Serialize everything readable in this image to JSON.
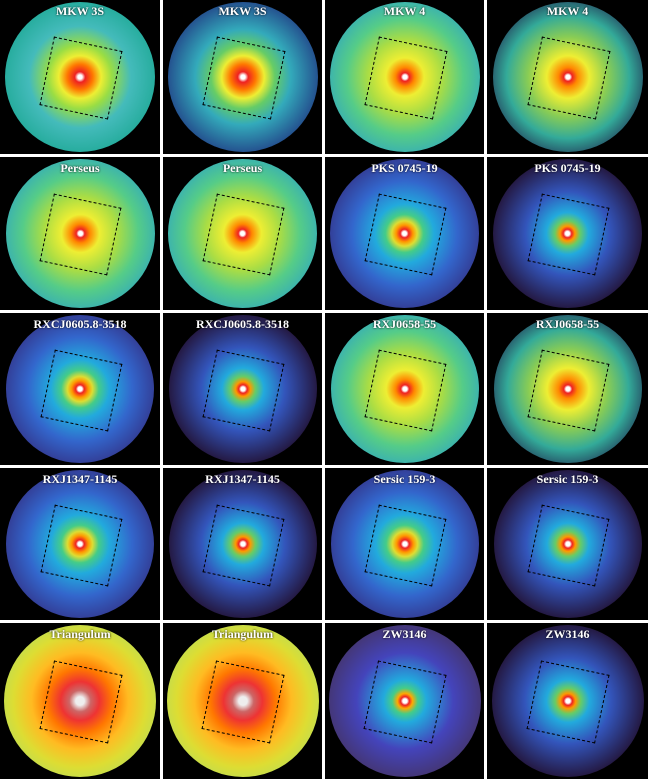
{
  "panels": [
    {
      "label": "MKW 3S"
    },
    {
      "label": "MKW 3S"
    },
    {
      "label": "MKW 4"
    },
    {
      "label": "MKW 4"
    },
    {
      "label": "Perseus"
    },
    {
      "label": "Perseus"
    },
    {
      "label": "PKS 0745-19"
    },
    {
      "label": "PKS 0745-19"
    },
    {
      "label": "RXCJ0605.8-3518"
    },
    {
      "label": "RXCJ0605.8-3518"
    },
    {
      "label": "RXJ0658-55"
    },
    {
      "label": "RXJ0658-55"
    },
    {
      "label": "RXJ1347-1145"
    },
    {
      "label": "RXJ1347-1145"
    },
    {
      "label": "Sersic 159-3"
    },
    {
      "label": "Sersic 159-3"
    },
    {
      "label": "Triangulum"
    },
    {
      "label": "Triangulum"
    },
    {
      "label": "ZW3146"
    },
    {
      "label": "ZW3146"
    }
  ]
}
